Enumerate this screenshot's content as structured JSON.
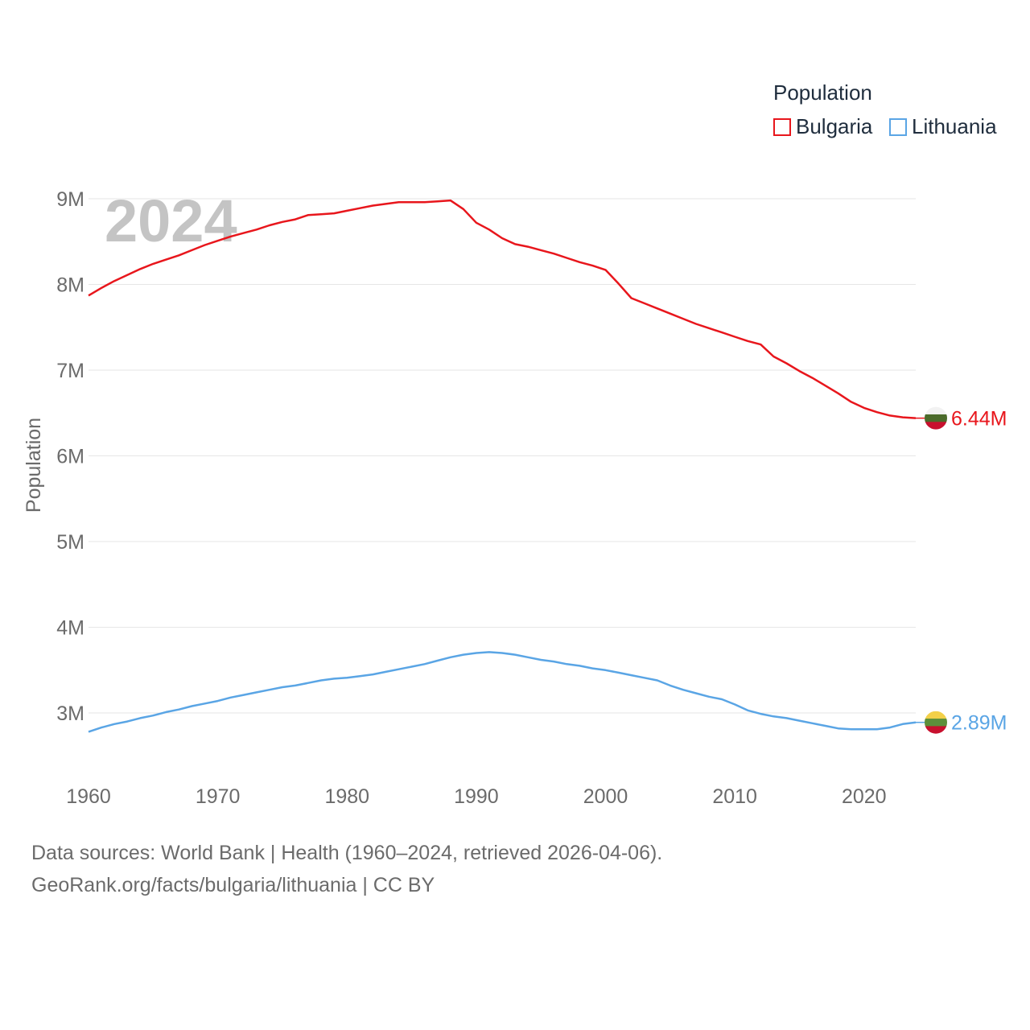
{
  "chart_data": {
    "type": "line",
    "year_label": "2024",
    "ylabel": "Population",
    "legend_title": "Population",
    "xlim": [
      1960,
      2024
    ],
    "ylim": [
      2500000,
      9300000
    ],
    "x_ticks": [
      1960,
      1970,
      1980,
      1990,
      2000,
      2010,
      2020
    ],
    "x_tick_labels": [
      "1960",
      "1970",
      "1980",
      "1990",
      "2000",
      "2010",
      "2020"
    ],
    "y_ticks": [
      3000000,
      4000000,
      5000000,
      6000000,
      7000000,
      8000000,
      9000000
    ],
    "y_tick_labels": [
      "3M",
      "4M",
      "5M",
      "6M",
      "7M",
      "8M",
      "9M"
    ],
    "x": [
      1960,
      1961,
      1962,
      1963,
      1964,
      1965,
      1966,
      1967,
      1968,
      1969,
      1970,
      1971,
      1972,
      1973,
      1974,
      1975,
      1976,
      1977,
      1978,
      1979,
      1980,
      1981,
      1982,
      1983,
      1984,
      1985,
      1986,
      1987,
      1988,
      1989,
      1990,
      1991,
      1992,
      1993,
      1994,
      1995,
      1996,
      1997,
      1998,
      1999,
      2000,
      2001,
      2002,
      2003,
      2004,
      2005,
      2006,
      2007,
      2008,
      2009,
      2010,
      2011,
      2012,
      2013,
      2014,
      2015,
      2016,
      2017,
      2018,
      2019,
      2020,
      2021,
      2022,
      2023,
      2024
    ],
    "series": [
      {
        "name": "Bulgaria",
        "color": "#e8161c",
        "end_label": "6.44M",
        "values": [
          7870000,
          7960000,
          8040000,
          8110000,
          8180000,
          8240000,
          8290000,
          8340000,
          8400000,
          8460000,
          8510000,
          8560000,
          8600000,
          8640000,
          8690000,
          8730000,
          8760000,
          8810000,
          8820000,
          8830000,
          8860000,
          8890000,
          8920000,
          8940000,
          8960000,
          8960000,
          8960000,
          8970000,
          8980000,
          8880000,
          8720000,
          8640000,
          8540000,
          8470000,
          8440000,
          8400000,
          8360000,
          8310000,
          8260000,
          8220000,
          8170000,
          8010000,
          7840000,
          7780000,
          7720000,
          7660000,
          7600000,
          7540000,
          7490000,
          7440000,
          7390000,
          7340000,
          7300000,
          7160000,
          7080000,
          6990000,
          6910000,
          6820000,
          6730000,
          6630000,
          6560000,
          6510000,
          6470000,
          6450000,
          6440000
        ]
      },
      {
        "name": "Lithuania",
        "color": "#5aa5e5",
        "end_label": "2.89M",
        "values": [
          2780000,
          2830000,
          2870000,
          2900000,
          2940000,
          2970000,
          3010000,
          3040000,
          3080000,
          3110000,
          3140000,
          3180000,
          3210000,
          3240000,
          3270000,
          3300000,
          3320000,
          3350000,
          3380000,
          3400000,
          3410000,
          3430000,
          3450000,
          3480000,
          3510000,
          3540000,
          3570000,
          3610000,
          3650000,
          3680000,
          3700000,
          3710000,
          3700000,
          3680000,
          3650000,
          3620000,
          3600000,
          3570000,
          3550000,
          3520000,
          3500000,
          3470000,
          3440000,
          3410000,
          3380000,
          3320000,
          3270000,
          3230000,
          3190000,
          3160000,
          3100000,
          3030000,
          2990000,
          2960000,
          2940000,
          2910000,
          2880000,
          2850000,
          2820000,
          2810000,
          2810000,
          2810000,
          2830000,
          2870000,
          2890000
        ]
      }
    ]
  },
  "footer": {
    "line1": "Data sources: World Bank | Health (1960–2024, retrieved 2026-04-06).",
    "line2": "GeoRank.org/facts/bulgaria/lithuania | CC BY"
  },
  "flags": {
    "bulgaria": [
      "#f2f2f2",
      "#4b6b2b",
      "#c8102e"
    ],
    "lithuania": [
      "#f2d049",
      "#5d8f3b",
      "#c8102e"
    ]
  }
}
